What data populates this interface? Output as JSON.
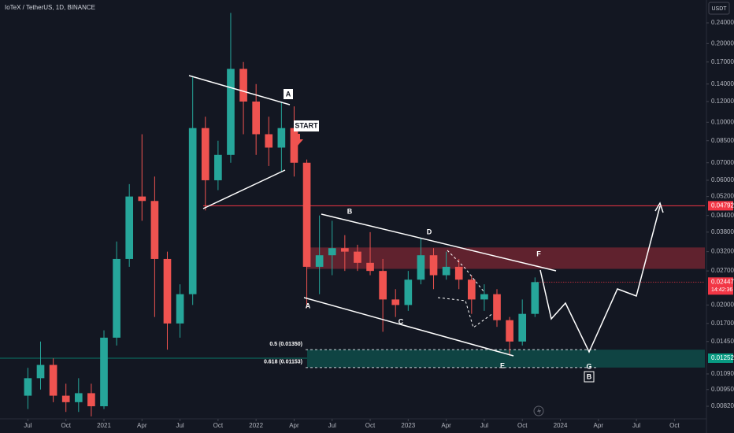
{
  "chart_data": {
    "type": "candlestick",
    "title": "IoTeX / TetherUS, 1D, BINANCE",
    "currency": "USDT",
    "log_scale": true,
    "up_color": "#26a69a",
    "down_color": "#ef5350",
    "x": [
      6,
      7,
      8,
      9,
      10,
      11,
      12,
      13,
      14,
      15,
      16,
      17,
      18,
      19,
      20,
      21,
      22,
      23,
      24,
      25,
      26,
      27,
      28,
      29,
      30,
      31,
      32,
      33,
      34,
      35,
      36,
      37,
      38,
      39,
      40,
      41,
      42,
      43,
      44,
      45,
      46
    ],
    "open": [
      0.009,
      0.0105,
      0.0118,
      0.009,
      0.0085,
      0.0092,
      0.0082,
      0.015,
      0.03,
      0.052,
      0.05,
      0.03,
      0.017,
      0.022,
      0.095,
      0.06,
      0.075,
      0.16,
      0.12,
      0.09,
      0.08,
      0.095,
      0.07,
      0.028,
      0.031,
      0.033,
      0.032,
      0.029,
      0.027,
      0.021,
      0.02,
      0.025,
      0.031,
      0.026,
      0.028,
      0.025,
      0.021,
      0.022,
      0.0175,
      0.0145,
      0.0185
    ],
    "high": [
      0.0115,
      0.0145,
      0.0125,
      0.01,
      0.0105,
      0.01,
      0.016,
      0.035,
      0.058,
      0.09,
      0.062,
      0.032,
      0.024,
      0.15,
      0.105,
      0.085,
      0.262,
      0.17,
      0.14,
      0.105,
      0.12,
      0.115,
      0.072,
      0.044,
      0.042,
      0.037,
      0.034,
      0.038,
      0.03,
      0.023,
      0.027,
      0.036,
      0.033,
      0.032,
      0.03,
      0.026,
      0.024,
      0.023,
      0.018,
      0.021,
      0.0255
    ],
    "low": [
      0.008,
      0.0095,
      0.0085,
      0.0078,
      0.0078,
      0.0075,
      0.008,
      0.014,
      0.028,
      0.042,
      0.018,
      0.0135,
      0.015,
      0.02,
      0.046,
      0.055,
      0.07,
      0.09,
      0.075,
      0.068,
      0.065,
      0.062,
      0.0195,
      0.022,
      0.026,
      0.027,
      0.027,
      0.026,
      0.0158,
      0.018,
      0.019,
      0.024,
      0.023,
      0.025,
      0.023,
      0.0185,
      0.019,
      0.0165,
      0.0128,
      0.014,
      0.018
    ],
    "close": [
      0.0105,
      0.0118,
      0.009,
      0.0085,
      0.0092,
      0.0082,
      0.015,
      0.03,
      0.052,
      0.05,
      0.03,
      0.017,
      0.022,
      0.095,
      0.06,
      0.075,
      0.16,
      0.12,
      0.09,
      0.08,
      0.095,
      0.07,
      0.028,
      0.031,
      0.033,
      0.032,
      0.029,
      0.027,
      0.021,
      0.02,
      0.025,
      0.031,
      0.026,
      0.028,
      0.025,
      0.021,
      0.022,
      0.0175,
      0.0145,
      0.0185,
      0.02447
    ],
    "countdown": "14:42:36",
    "xlim": [
      3.8,
      59.4
    ],
    "xticks": [
      {
        "value": 6,
        "label": "Jul"
      },
      {
        "value": 9,
        "label": "Oct"
      },
      {
        "value": 12,
        "label": "2021"
      },
      {
        "value": 15,
        "label": "Apr"
      },
      {
        "value": 18,
        "label": "Jul"
      },
      {
        "value": 21,
        "label": "Oct"
      },
      {
        "value": 24,
        "label": "2022"
      },
      {
        "value": 27,
        "label": "Apr"
      },
      {
        "value": 30,
        "label": "Jul"
      },
      {
        "value": 33,
        "label": "Oct"
      },
      {
        "value": 36,
        "label": "2023"
      },
      {
        "value": 39,
        "label": "Apr"
      },
      {
        "value": 42,
        "label": "Jul"
      },
      {
        "value": 45,
        "label": "Oct"
      },
      {
        "value": 48,
        "label": "2024"
      },
      {
        "value": 51,
        "label": "Apr"
      },
      {
        "value": 54,
        "label": "Jul"
      },
      {
        "value": 57,
        "label": "Oct"
      }
    ],
    "ylim": [
      0.00734,
      0.2935
    ],
    "yticks": [
      {
        "value": 0.24,
        "label": "0.24000"
      },
      {
        "value": 0.2,
        "label": "0.20000"
      },
      {
        "value": 0.17,
        "label": "0.17000"
      },
      {
        "value": 0.14,
        "label": "0.14000"
      },
      {
        "value": 0.12,
        "label": "0.12000"
      },
      {
        "value": 0.1,
        "label": "0.10000"
      },
      {
        "value": 0.085,
        "label": "0.08500"
      },
      {
        "value": 0.07,
        "label": "0.07000"
      },
      {
        "value": 0.06,
        "label": "0.06000"
      },
      {
        "value": 0.052,
        "label": "0.05200"
      },
      {
        "value": 0.044,
        "label": "0.04400"
      },
      {
        "value": 0.038,
        "label": "0.03800"
      },
      {
        "value": 0.032,
        "label": "0.03200"
      },
      {
        "value": 0.027,
        "label": "0.02700"
      },
      {
        "value": 0.02,
        "label": "0.02000"
      },
      {
        "value": 0.017,
        "label": "0.01700"
      },
      {
        "value": 0.0145,
        "label": "0.01450"
      },
      {
        "value": 0.0109,
        "label": "0.01090"
      },
      {
        "value": 0.0095,
        "label": "0.00950"
      },
      {
        "value": 0.0082,
        "label": "0.00820"
      }
    ],
    "resistance_level": 0.04792,
    "support_level": 0.01252,
    "supply_zone": [
      0.0275,
      0.0332
    ],
    "fib_levels": [
      {
        "label": "0.5 (0.01350)",
        "value": 0.0135
      },
      {
        "label": "0.618 (0.01153)",
        "value": 0.01153
      }
    ],
    "annotations": [
      "A",
      "START",
      "B",
      "D",
      "F",
      "A",
      "C",
      "E",
      "G",
      "B"
    ]
  }
}
